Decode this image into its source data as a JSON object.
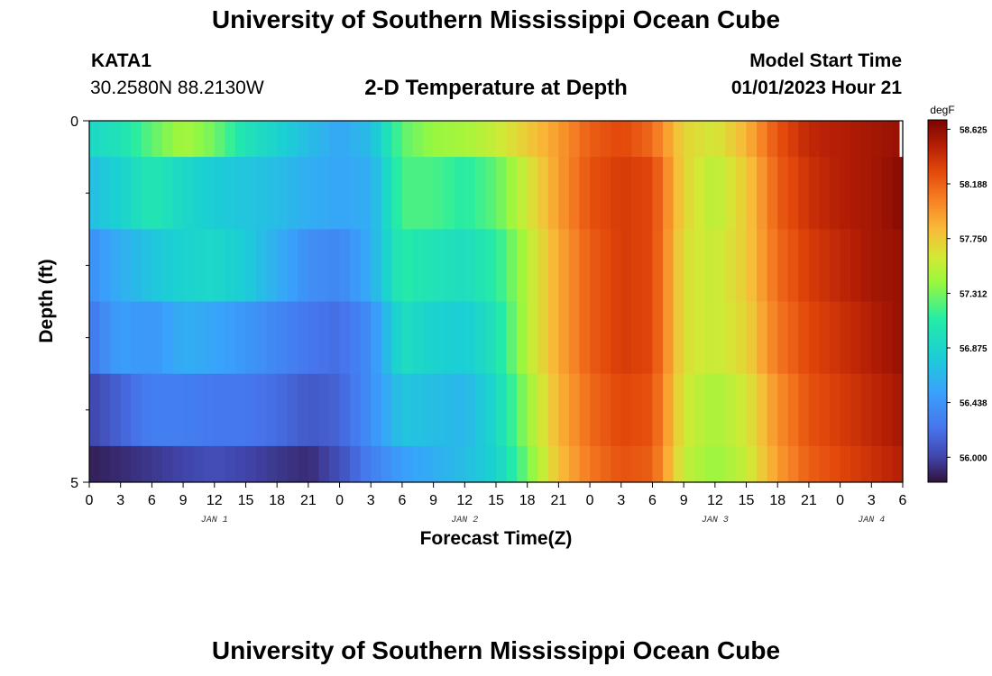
{
  "header": {
    "title": "University of Southern Mississippi Ocean Cube",
    "title_bottom": "University of Southern Mississippi Ocean Cube",
    "station_id": "KATA1",
    "station_coords": "30.2580N  88.2130W",
    "plot_title": "2-D Temperature at Depth",
    "start_label": "Model Start Time",
    "start_value": "01/01/2023 Hour 21"
  },
  "chart_data": {
    "type": "heatmap",
    "title": "2-D Temperature at Depth",
    "xlabel": "Forecast Time(Z)",
    "ylabel": "Depth (ft)",
    "unit": "degF",
    "x_tick_labels": [
      "0",
      "3",
      "6",
      "9",
      "12",
      "15",
      "18",
      "21",
      "0",
      "3",
      "6",
      "9",
      "12",
      "15",
      "18",
      "21",
      "0",
      "3",
      "6",
      "9",
      "12",
      "15",
      "18",
      "21",
      "0",
      "3",
      "6"
    ],
    "date_labels": [
      {
        "label": "JAN 1",
        "at_hour": 12
      },
      {
        "label": "JAN 2",
        "at_hour": 36
      },
      {
        "label": "JAN 3",
        "at_hour": 60
      },
      {
        "label": "JAN 4",
        "at_hour": 75
      }
    ],
    "x_range_hours": [
      0,
      78
    ],
    "y_tick_labels": [
      "0",
      "5"
    ],
    "y_range": [
      0,
      5
    ],
    "colorbar": {
      "range": [
        55.8,
        58.7
      ],
      "tick_values": [
        56.0,
        56.438,
        56.875,
        57.312,
        57.75,
        58.188,
        58.625
      ],
      "tick_labels": [
        "56.000",
        "56.438",
        "56.875",
        "57.312",
        "57.750",
        "58.188",
        "58.625"
      ]
    },
    "time_knots": [
      0,
      3,
      6,
      9,
      12,
      15,
      18,
      21,
      24,
      27,
      30,
      33,
      36,
      39,
      42,
      45,
      48,
      51,
      54,
      57,
      60,
      63,
      66,
      69,
      72,
      75,
      78
    ],
    "layers": [
      {
        "depth_top": 0.0,
        "depth_bottom": 0.5,
        "temps": [
          56.9,
          57.0,
          57.25,
          57.45,
          57.3,
          57.0,
          56.85,
          56.7,
          56.55,
          56.7,
          57.25,
          57.4,
          57.45,
          57.55,
          57.75,
          57.95,
          58.2,
          58.3,
          58.15,
          57.7,
          57.6,
          57.85,
          58.25,
          58.45,
          58.5,
          58.55,
          58.6
        ]
      },
      {
        "depth_top": 0.5,
        "depth_bottom": 1.5,
        "temps": [
          56.7,
          56.85,
          57.05,
          56.9,
          56.8,
          56.75,
          56.7,
          56.6,
          56.55,
          56.6,
          57.2,
          57.2,
          57.1,
          57.25,
          57.6,
          57.95,
          58.25,
          58.35,
          58.3,
          57.7,
          57.5,
          57.75,
          58.2,
          58.4,
          58.5,
          58.55,
          58.65
        ]
      },
      {
        "depth_top": 1.5,
        "depth_bottom": 2.5,
        "temps": [
          56.4,
          56.6,
          56.75,
          56.85,
          56.9,
          56.8,
          56.6,
          56.4,
          56.35,
          56.6,
          57.1,
          57.0,
          56.95,
          57.1,
          57.5,
          57.9,
          58.2,
          58.35,
          58.3,
          57.65,
          57.55,
          57.75,
          58.15,
          58.35,
          58.45,
          58.55,
          58.6
        ]
      },
      {
        "depth_top": 2.5,
        "depth_bottom": 3.5,
        "temps": [
          56.25,
          56.5,
          56.45,
          56.6,
          56.55,
          56.45,
          56.35,
          56.25,
          56.2,
          56.4,
          56.95,
          56.85,
          56.8,
          57.0,
          57.5,
          57.9,
          58.2,
          58.35,
          58.3,
          57.65,
          57.55,
          57.7,
          58.1,
          58.3,
          58.4,
          58.5,
          58.6
        ]
      },
      {
        "depth_top": 3.5,
        "depth_bottom": 4.5,
        "temps": [
          56.0,
          56.15,
          56.3,
          56.3,
          56.25,
          56.25,
          56.2,
          56.1,
          56.15,
          56.4,
          56.75,
          56.7,
          56.65,
          56.9,
          57.4,
          57.85,
          58.15,
          58.3,
          58.25,
          57.6,
          57.45,
          57.6,
          58.0,
          58.25,
          58.35,
          58.45,
          58.55
        ]
      },
      {
        "depth_top": 4.5,
        "depth_bottom": 5.0,
        "temps": [
          55.85,
          55.9,
          55.95,
          56.0,
          56.05,
          56.0,
          55.95,
          55.9,
          56.05,
          56.3,
          56.5,
          56.6,
          56.7,
          56.85,
          57.3,
          57.8,
          58.1,
          58.25,
          58.2,
          57.55,
          57.4,
          57.55,
          57.95,
          58.2,
          58.3,
          58.4,
          58.5
        ]
      }
    ],
    "missing_region": {
      "time_from": 77.7,
      "time_to": 78,
      "depth_from": 0,
      "depth_to": 0.5
    }
  }
}
